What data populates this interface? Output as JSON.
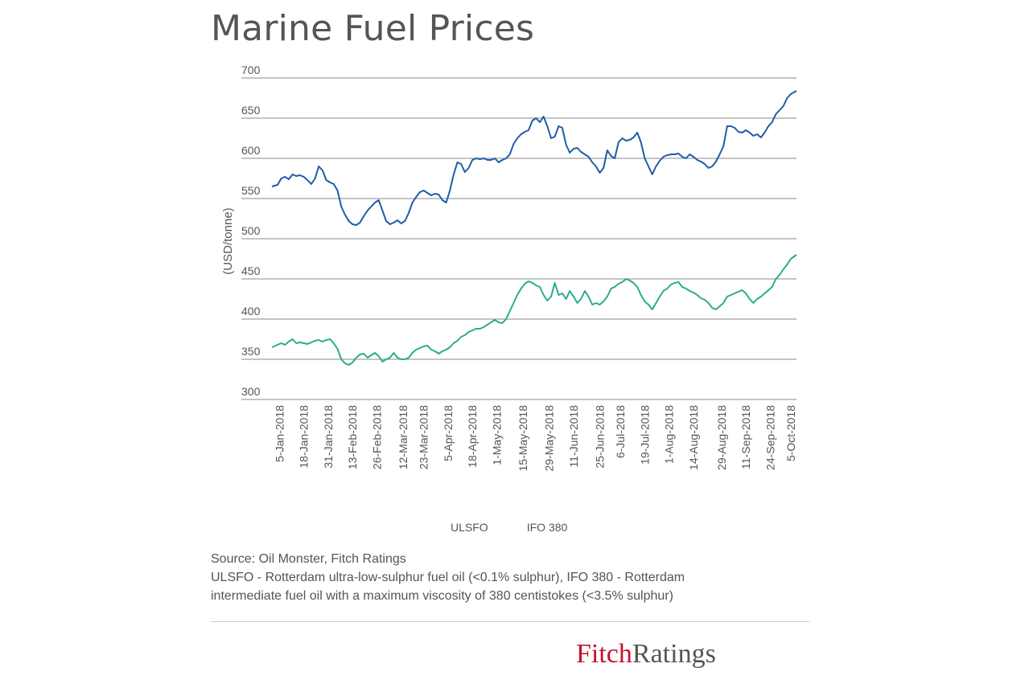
{
  "title": "Marine Fuel Prices",
  "colors": {
    "ulsfo": "#1f5ca8",
    "ifo380": "#2bab8f",
    "grid": "#888888",
    "fitch_red": "#c8102e"
  },
  "legend": {
    "ulsfo": "ULSFO",
    "ifo380": "IFO 380"
  },
  "source": {
    "line1": "Source: Oil Monster, Fitch Ratings",
    "line2": "ULSFO - Rotterdam ultra-low-sulphur fuel oil (<0.1% sulphur), IFO 380 - Rotterdam",
    "line3": "intermediate fuel oil with a maximum viscosity of 380 centistokes (<3.5% sulphur)"
  },
  "logo": {
    "part1": "Fitch",
    "part2": "Ratings"
  },
  "chart_data": {
    "type": "line",
    "title": "Marine Fuel Prices",
    "xlabel": "",
    "ylabel": "(USD/tonne)",
    "ylim": [
      300,
      700
    ],
    "yticks": [
      300,
      350,
      400,
      450,
      500,
      550,
      600,
      650,
      700
    ],
    "xlim": [
      1,
      281
    ],
    "x_ticks": [
      {
        "label": "5-Jan-2018",
        "x": 5
      },
      {
        "label": "18-Jan-2018",
        "x": 18
      },
      {
        "label": "31-Jan-2018",
        "x": 31
      },
      {
        "label": "13-Feb-2018",
        "x": 44
      },
      {
        "label": "26-Feb-2018",
        "x": 57
      },
      {
        "label": "12-Mar-2018",
        "x": 71
      },
      {
        "label": "23-Mar-2018",
        "x": 82
      },
      {
        "label": "5-Apr-2018",
        "x": 95
      },
      {
        "label": "18-Apr-2018",
        "x": 108
      },
      {
        "label": "1-May-2018",
        "x": 121
      },
      {
        "label": "15-May-2018",
        "x": 135
      },
      {
        "label": "29-May-2018",
        "x": 149
      },
      {
        "label": "11-Jun-2018",
        "x": 162
      },
      {
        "label": "25-Jun-2018",
        "x": 176
      },
      {
        "label": "6-Jul-2018",
        "x": 187
      },
      {
        "label": "19-Jul-2018",
        "x": 200
      },
      {
        "label": "1-Aug-2018",
        "x": 213
      },
      {
        "label": "14-Aug-2018",
        "x": 226
      },
      {
        "label": "29-Aug-2018",
        "x": 241
      },
      {
        "label": "11-Sep-2018",
        "x": 254
      },
      {
        "label": "24-Sep-2018",
        "x": 267
      },
      {
        "label": "5-Oct-2018",
        "x": 278
      }
    ],
    "series": [
      {
        "name": "ULSFO",
        "points": [
          [
            1,
            565
          ],
          [
            4,
            567
          ],
          [
            6,
            575
          ],
          [
            8,
            577
          ],
          [
            10,
            574
          ],
          [
            12,
            580
          ],
          [
            14,
            578
          ],
          [
            16,
            579
          ],
          [
            18,
            577
          ],
          [
            20,
            573
          ],
          [
            22,
            568
          ],
          [
            24,
            575
          ],
          [
            26,
            590
          ],
          [
            28,
            585
          ],
          [
            30,
            573
          ],
          [
            32,
            570
          ],
          [
            34,
            568
          ],
          [
            36,
            560
          ],
          [
            38,
            540
          ],
          [
            40,
            530
          ],
          [
            42,
            522
          ],
          [
            44,
            518
          ],
          [
            46,
            517
          ],
          [
            48,
            520
          ],
          [
            50,
            528
          ],
          [
            52,
            535
          ],
          [
            54,
            540
          ],
          [
            56,
            545
          ],
          [
            58,
            548
          ],
          [
            60,
            535
          ],
          [
            62,
            522
          ],
          [
            64,
            518
          ],
          [
            66,
            520
          ],
          [
            68,
            523
          ],
          [
            70,
            519
          ],
          [
            72,
            522
          ],
          [
            74,
            532
          ],
          [
            76,
            545
          ],
          [
            78,
            552
          ],
          [
            80,
            558
          ],
          [
            82,
            560
          ],
          [
            84,
            557
          ],
          [
            86,
            554
          ],
          [
            88,
            556
          ],
          [
            90,
            555
          ],
          [
            92,
            548
          ],
          [
            94,
            545
          ],
          [
            96,
            560
          ],
          [
            98,
            580
          ],
          [
            100,
            595
          ],
          [
            102,
            593
          ],
          [
            104,
            583
          ],
          [
            106,
            588
          ],
          [
            108,
            598
          ],
          [
            110,
            600
          ],
          [
            112,
            599
          ],
          [
            114,
            600
          ],
          [
            116,
            598
          ],
          [
            118,
            598
          ],
          [
            120,
            600
          ],
          [
            122,
            595
          ],
          [
            124,
            598
          ],
          [
            126,
            600
          ],
          [
            128,
            605
          ],
          [
            130,
            618
          ],
          [
            132,
            625
          ],
          [
            134,
            630
          ],
          [
            136,
            633
          ],
          [
            138,
            635
          ],
          [
            140,
            647
          ],
          [
            142,
            650
          ],
          [
            144,
            645
          ],
          [
            146,
            652
          ],
          [
            148,
            640
          ],
          [
            150,
            625
          ],
          [
            152,
            627
          ],
          [
            154,
            640
          ],
          [
            156,
            638
          ],
          [
            158,
            617
          ],
          [
            160,
            607
          ],
          [
            162,
            612
          ],
          [
            164,
            613
          ],
          [
            166,
            608
          ],
          [
            168,
            605
          ],
          [
            170,
            602
          ],
          [
            172,
            595
          ],
          [
            174,
            590
          ],
          [
            176,
            582
          ],
          [
            178,
            588
          ],
          [
            180,
            610
          ],
          [
            182,
            603
          ],
          [
            184,
            600
          ],
          [
            186,
            620
          ],
          [
            188,
            625
          ],
          [
            190,
            622
          ],
          [
            192,
            623
          ],
          [
            194,
            626
          ],
          [
            196,
            632
          ],
          [
            198,
            620
          ],
          [
            200,
            600
          ],
          [
            202,
            590
          ],
          [
            204,
            580
          ],
          [
            206,
            590
          ],
          [
            208,
            597
          ],
          [
            210,
            602
          ],
          [
            212,
            604
          ],
          [
            214,
            605
          ],
          [
            216,
            605
          ],
          [
            218,
            606
          ],
          [
            220,
            602
          ],
          [
            222,
            600
          ],
          [
            224,
            605
          ],
          [
            226,
            602
          ],
          [
            228,
            598
          ],
          [
            230,
            596
          ],
          [
            232,
            593
          ],
          [
            234,
            588
          ],
          [
            236,
            590
          ],
          [
            238,
            596
          ],
          [
            240,
            605
          ],
          [
            242,
            615
          ],
          [
            244,
            640
          ],
          [
            246,
            640
          ],
          [
            248,
            638
          ],
          [
            250,
            633
          ],
          [
            252,
            632
          ],
          [
            254,
            635
          ],
          [
            256,
            632
          ],
          [
            258,
            628
          ],
          [
            260,
            630
          ],
          [
            262,
            626
          ],
          [
            264,
            632
          ],
          [
            266,
            640
          ],
          [
            268,
            645
          ],
          [
            270,
            655
          ],
          [
            272,
            660
          ],
          [
            274,
            665
          ],
          [
            276,
            675
          ],
          [
            278,
            680
          ],
          [
            281,
            684
          ]
        ]
      },
      {
        "name": "IFO 380",
        "points": [
          [
            1,
            365
          ],
          [
            4,
            368
          ],
          [
            6,
            370
          ],
          [
            8,
            368
          ],
          [
            10,
            372
          ],
          [
            12,
            375
          ],
          [
            14,
            370
          ],
          [
            16,
            371
          ],
          [
            18,
            370
          ],
          [
            20,
            369
          ],
          [
            22,
            371
          ],
          [
            24,
            373
          ],
          [
            26,
            374
          ],
          [
            28,
            372
          ],
          [
            30,
            374
          ],
          [
            32,
            375
          ],
          [
            34,
            370
          ],
          [
            36,
            363
          ],
          [
            38,
            350
          ],
          [
            40,
            345
          ],
          [
            42,
            343
          ],
          [
            44,
            346
          ],
          [
            46,
            352
          ],
          [
            48,
            356
          ],
          [
            50,
            357
          ],
          [
            52,
            352
          ],
          [
            54,
            355
          ],
          [
            56,
            358
          ],
          [
            58,
            354
          ],
          [
            60,
            347
          ],
          [
            62,
            350
          ],
          [
            64,
            352
          ],
          [
            66,
            358
          ],
          [
            68,
            352
          ],
          [
            70,
            350
          ],
          [
            72,
            350
          ],
          [
            74,
            352
          ],
          [
            76,
            358
          ],
          [
            78,
            362
          ],
          [
            80,
            364
          ],
          [
            82,
            366
          ],
          [
            84,
            367
          ],
          [
            86,
            362
          ],
          [
            88,
            360
          ],
          [
            90,
            357
          ],
          [
            92,
            360
          ],
          [
            94,
            362
          ],
          [
            96,
            365
          ],
          [
            98,
            370
          ],
          [
            100,
            373
          ],
          [
            102,
            378
          ],
          [
            104,
            380
          ],
          [
            106,
            384
          ],
          [
            108,
            386
          ],
          [
            110,
            388
          ],
          [
            112,
            388
          ],
          [
            114,
            390
          ],
          [
            116,
            393
          ],
          [
            118,
            396
          ],
          [
            120,
            399
          ],
          [
            122,
            396
          ],
          [
            124,
            395
          ],
          [
            126,
            400
          ],
          [
            128,
            410
          ],
          [
            130,
            420
          ],
          [
            132,
            430
          ],
          [
            134,
            438
          ],
          [
            136,
            444
          ],
          [
            138,
            447
          ],
          [
            140,
            445
          ],
          [
            142,
            442
          ],
          [
            144,
            440
          ],
          [
            146,
            430
          ],
          [
            148,
            423
          ],
          [
            150,
            428
          ],
          [
            152,
            445
          ],
          [
            154,
            430
          ],
          [
            156,
            432
          ],
          [
            158,
            425
          ],
          [
            160,
            435
          ],
          [
            162,
            428
          ],
          [
            164,
            420
          ],
          [
            166,
            425
          ],
          [
            168,
            435
          ],
          [
            170,
            428
          ],
          [
            172,
            418
          ],
          [
            174,
            420
          ],
          [
            176,
            418
          ],
          [
            178,
            422
          ],
          [
            180,
            428
          ],
          [
            182,
            438
          ],
          [
            184,
            440
          ],
          [
            186,
            444
          ],
          [
            188,
            446
          ],
          [
            190,
            450
          ],
          [
            192,
            448
          ],
          [
            194,
            445
          ],
          [
            196,
            440
          ],
          [
            198,
            430
          ],
          [
            200,
            422
          ],
          [
            202,
            418
          ],
          [
            204,
            412
          ],
          [
            206,
            420
          ],
          [
            208,
            428
          ],
          [
            210,
            435
          ],
          [
            212,
            438
          ],
          [
            214,
            443
          ],
          [
            216,
            445
          ],
          [
            218,
            446
          ],
          [
            220,
            440
          ],
          [
            222,
            438
          ],
          [
            224,
            435
          ],
          [
            226,
            433
          ],
          [
            228,
            430
          ],
          [
            230,
            426
          ],
          [
            232,
            424
          ],
          [
            234,
            420
          ],
          [
            236,
            414
          ],
          [
            238,
            412
          ],
          [
            240,
            416
          ],
          [
            242,
            420
          ],
          [
            244,
            428
          ],
          [
            246,
            430
          ],
          [
            248,
            432
          ],
          [
            250,
            434
          ],
          [
            252,
            436
          ],
          [
            254,
            432
          ],
          [
            256,
            425
          ],
          [
            258,
            420
          ],
          [
            260,
            425
          ],
          [
            262,
            428
          ],
          [
            264,
            432
          ],
          [
            266,
            436
          ],
          [
            268,
            440
          ],
          [
            270,
            450
          ],
          [
            272,
            455
          ],
          [
            274,
            462
          ],
          [
            276,
            468
          ],
          [
            278,
            475
          ],
          [
            281,
            480
          ]
        ]
      }
    ]
  }
}
